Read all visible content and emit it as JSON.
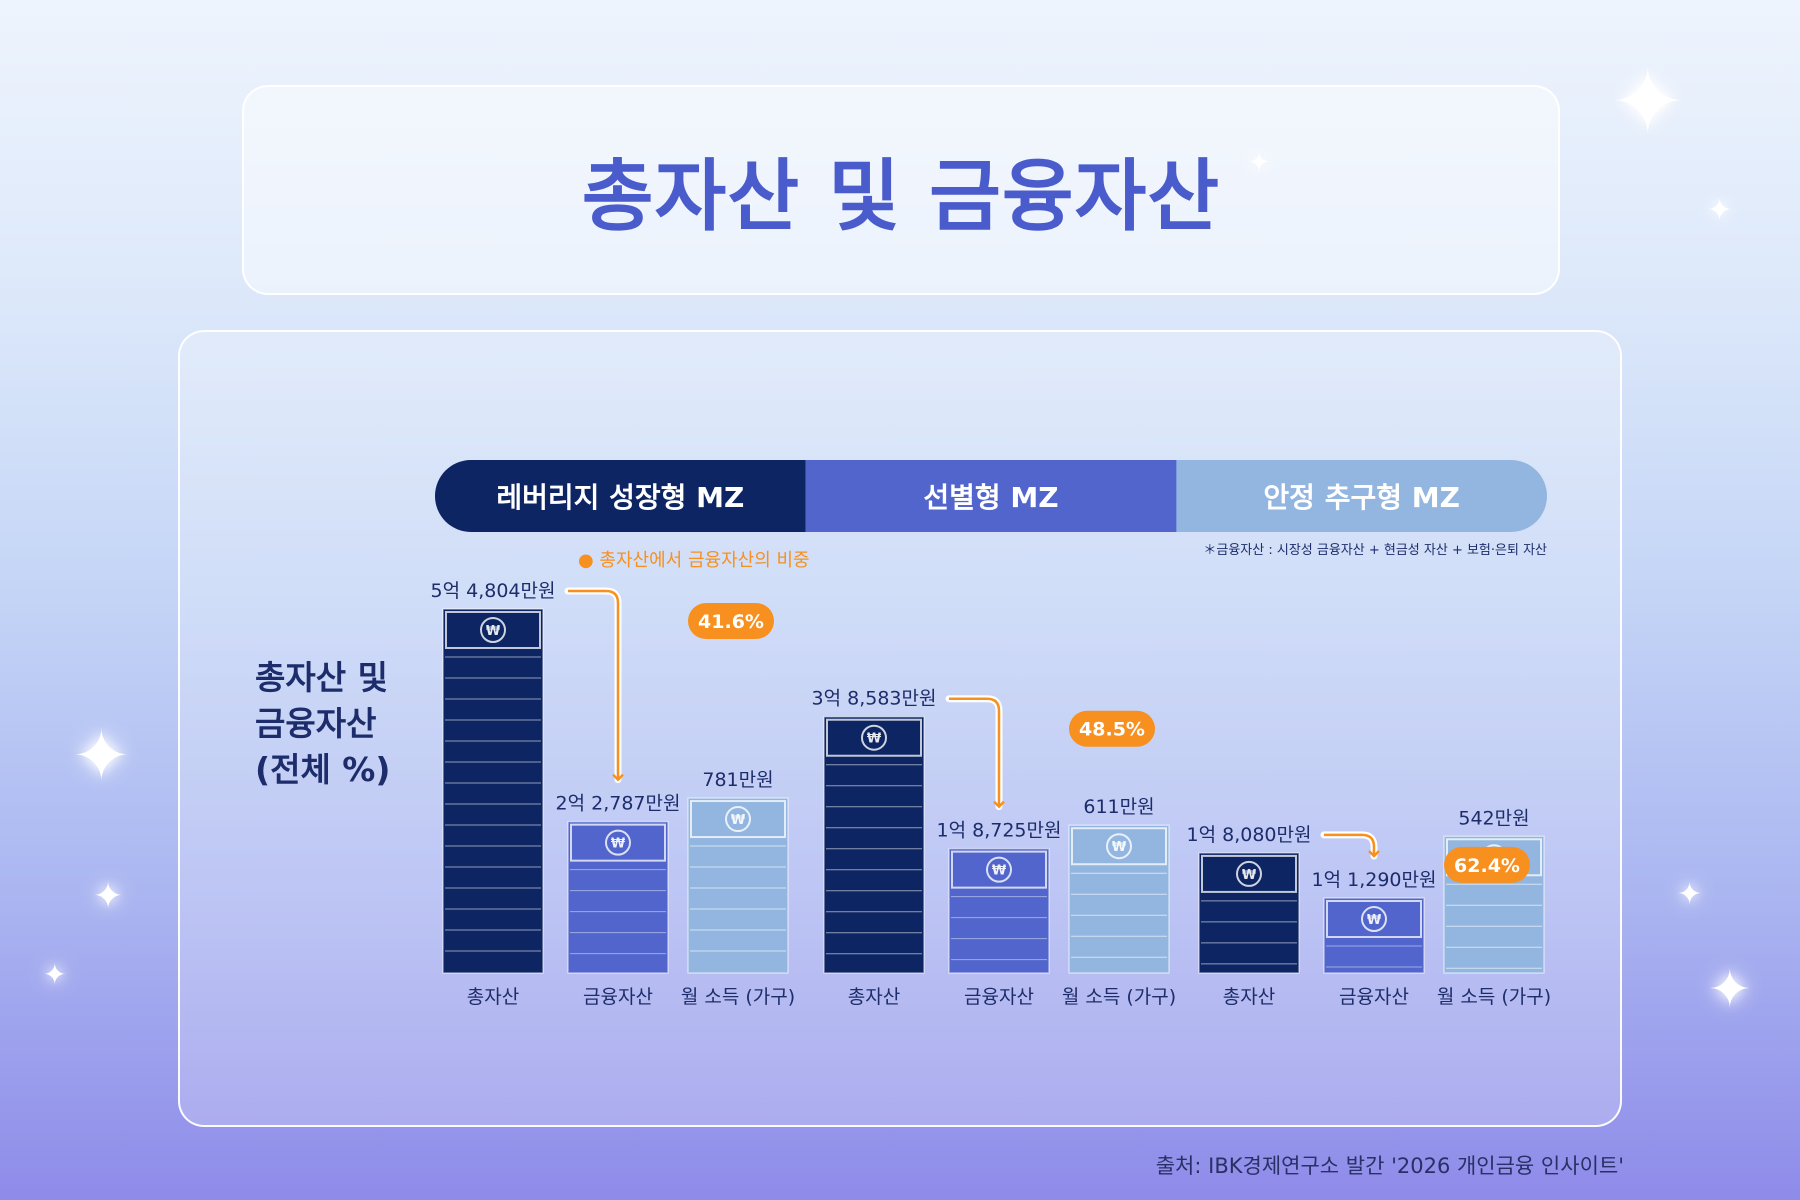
{
  "title": "총자산 및 금융자산",
  "side_label": [
    "총자산 및",
    "금융자산",
    "(전체 %)"
  ],
  "source": "출처: IBK경제연구소 발간 '2026 개인금융 인사이트'",
  "footnote": "＊금융자산 : 시장성 금융자산 + 현금성 자산 + 보험·은퇴 자산",
  "legend_note": "● 총자산에서 금융자산의 비중",
  "colors": {
    "title": "#4a5bcc",
    "leverage": "#0d2563",
    "selective": "#5165cc",
    "stable": "#92b6e0",
    "orange": "#f7901e",
    "label": "#1d2d6b"
  },
  "chart_data": {
    "type": "bar",
    "unit": "만원",
    "groups": [
      {
        "name": "레버리지 성장형 MZ",
        "categories": [
          "총자산",
          "금융자산",
          "월 소득 (가구)"
        ],
        "values": [
          54804,
          22787,
          781
        ],
        "value_labels": [
          "5억 4,804만원",
          "2억 2,787만원",
          "781만원"
        ],
        "share_label": "41.6%"
      },
      {
        "name": "선별형 MZ",
        "categories": [
          "총자산",
          "금융자산",
          "월 소득 (가구)"
        ],
        "values": [
          38583,
          18725,
          611
        ],
        "value_labels": [
          "3억 8,583만원",
          "1억 8,725만원",
          "611만원"
        ],
        "share_label": "48.5%"
      },
      {
        "name": "안정 추구형 MZ",
        "categories": [
          "총자산",
          "금융자산",
          "월 소득 (가구)"
        ],
        "values": [
          18080,
          11290,
          542
        ],
        "value_labels": [
          "1억 8,080만원",
          "1억 1,290만원",
          "542만원"
        ],
        "share_label": "62.4%"
      }
    ]
  }
}
